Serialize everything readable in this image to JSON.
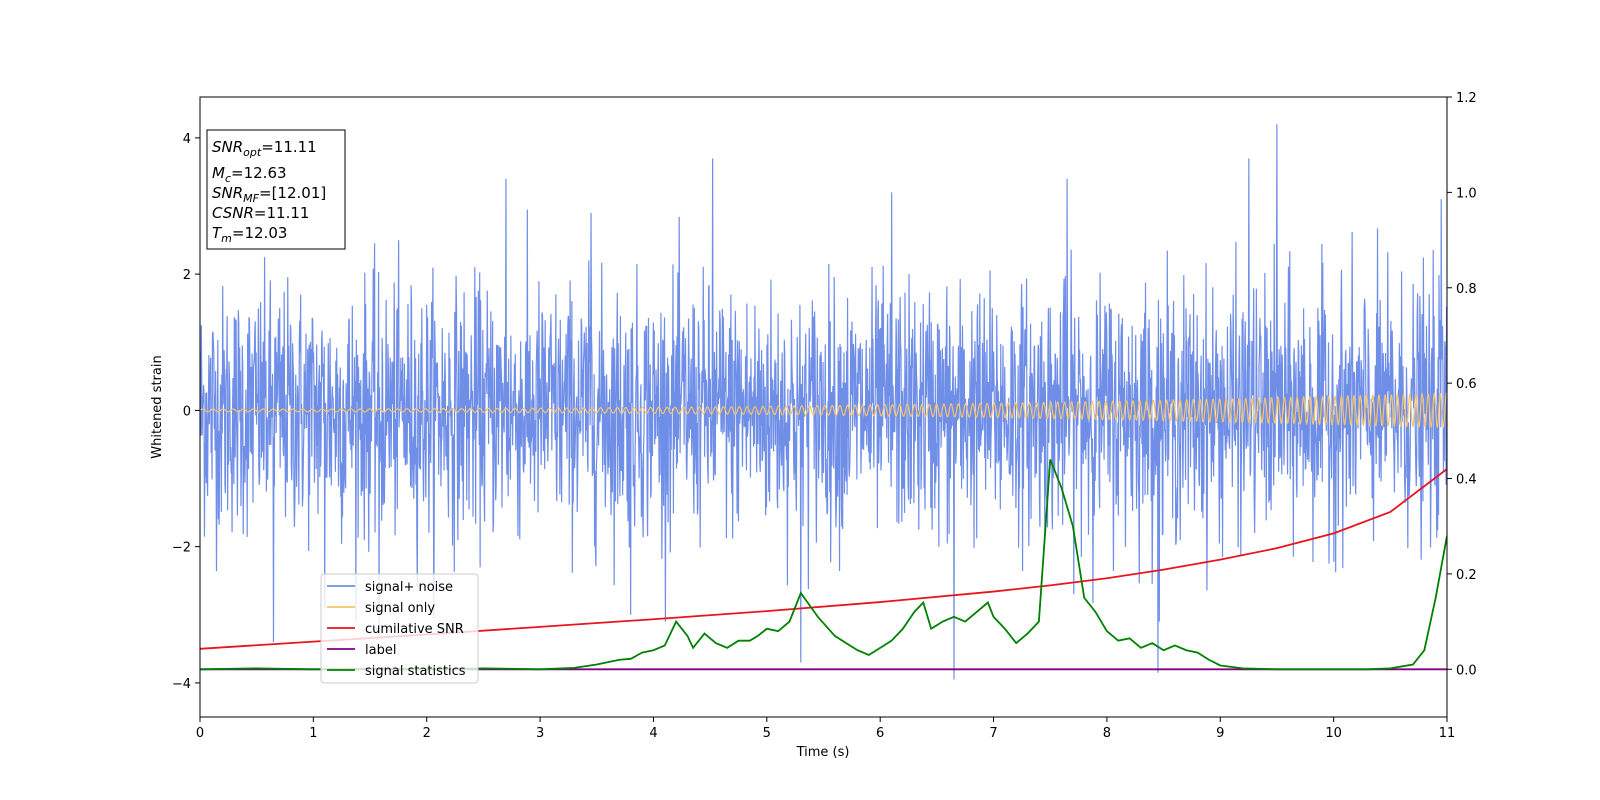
{
  "chart_data": {
    "type": "line",
    "xlabel": "Time (s)",
    "ylabel": "Whitened strain",
    "xlim": [
      0,
      11
    ],
    "ylim": [
      -4.5,
      4.6
    ],
    "y2lim": [
      -0.1,
      1.2
    ],
    "x_ticks": [
      "0",
      "1",
      "2",
      "3",
      "4",
      "5",
      "6",
      "7",
      "8",
      "9",
      "10",
      "11"
    ],
    "y_ticks": [
      "−4",
      "−2",
      "0",
      "2",
      "4"
    ],
    "y2_ticks": [
      "0.0",
      "0.2",
      "0.4",
      "0.6",
      "0.8",
      "1.0",
      "1.2"
    ],
    "grid": false,
    "legend_position": "lower-left",
    "info_box": [
      {
        "main": "SNR",
        "sub": "opt",
        "rest": "=11.11"
      },
      {
        "main": "M",
        "sub": "c",
        "rest": "=12.63"
      },
      {
        "main": "SNR",
        "sub": "MF",
        "rest": "=[12.01]"
      },
      {
        "main": "CSNR",
        "sub": "",
        "rest": "=11.11"
      },
      {
        "main": "T",
        "sub": "m",
        "rest": "=12.03"
      }
    ],
    "series": [
      {
        "name": "signal+ noise",
        "color": "#6f8ee8",
        "axis": "left",
        "style": "noise",
        "sigma": 0.9,
        "spikes": [
          {
            "x": 0.65,
            "y": -3.4
          },
          {
            "x": 1.58,
            "y": -3.3
          },
          {
            "x": 2.7,
            "y": 3.4
          },
          {
            "x": 3.8,
            "y": -3.0
          },
          {
            "x": 4.52,
            "y": 3.7
          },
          {
            "x": 5.3,
            "y": -3.7
          },
          {
            "x": 6.1,
            "y": 3.2
          },
          {
            "x": 6.65,
            "y": -3.95
          },
          {
            "x": 7.65,
            "y": 3.4
          },
          {
            "x": 8.45,
            "y": -3.85
          },
          {
            "x": 9.5,
            "y": 4.2
          },
          {
            "x": 9.25,
            "y": 3.7
          },
          {
            "x": 10.95,
            "y": 3.1
          },
          {
            "x": 3.45,
            "y": 2.9
          },
          {
            "x": 1.1,
            "y": -2.9
          }
        ]
      },
      {
        "name": "signal only",
        "color": "#f5c36e",
        "axis": "left",
        "style": "chirp",
        "amplitude_start": 0.02,
        "amplitude_end": 0.25
      },
      {
        "name": "cumilative SNR",
        "color": "#e8141e",
        "axis": "right",
        "style": "line",
        "x": [
          0,
          1,
          2,
          3,
          4,
          5,
          6,
          7,
          7.5,
          8,
          8.5,
          9,
          9.5,
          10,
          10.5,
          11
        ],
        "y": [
          0.043,
          0.058,
          0.073,
          0.089,
          0.105,
          0.122,
          0.141,
          0.163,
          0.176,
          0.191,
          0.209,
          0.23,
          0.254,
          0.285,
          0.33,
          0.42
        ]
      },
      {
        "name": "label",
        "color": "#800080",
        "axis": "right",
        "style": "line",
        "x": [
          0,
          11
        ],
        "y": [
          0.0,
          0.0
        ]
      },
      {
        "name": "signal statistics",
        "color": "#008000",
        "axis": "right",
        "style": "line",
        "x": [
          0,
          0.5,
          1,
          1.5,
          2,
          2.5,
          3,
          3.3,
          3.5,
          3.7,
          3.8,
          3.9,
          4.0,
          4.1,
          4.2,
          4.3,
          4.35,
          4.45,
          4.55,
          4.65,
          4.75,
          4.85,
          4.92,
          5.0,
          5.1,
          5.2,
          5.3,
          5.45,
          5.6,
          5.7,
          5.8,
          5.9,
          6.0,
          6.1,
          6.2,
          6.3,
          6.38,
          6.45,
          6.55,
          6.65,
          6.75,
          6.85,
          6.95,
          7.0,
          7.1,
          7.2,
          7.3,
          7.4,
          7.5,
          7.6,
          7.7,
          7.8,
          7.9,
          8.0,
          8.1,
          8.2,
          8.3,
          8.4,
          8.5,
          8.6,
          8.7,
          8.8,
          8.9,
          9.0,
          9.2,
          9.5,
          9.8,
          10.0,
          10.3,
          10.5,
          10.6,
          10.7,
          10.8,
          10.9,
          11.0
        ],
        "y": [
          0.0,
          0.002,
          0.0,
          0.001,
          0.0,
          0.002,
          0.0,
          0.003,
          0.01,
          0.02,
          0.022,
          0.035,
          0.04,
          0.05,
          0.1,
          0.07,
          0.045,
          0.075,
          0.055,
          0.045,
          0.06,
          0.06,
          0.07,
          0.085,
          0.08,
          0.1,
          0.16,
          0.11,
          0.07,
          0.055,
          0.04,
          0.03,
          0.045,
          0.06,
          0.085,
          0.12,
          0.14,
          0.085,
          0.1,
          0.11,
          0.1,
          0.12,
          0.14,
          0.11,
          0.085,
          0.055,
          0.075,
          0.1,
          0.44,
          0.38,
          0.3,
          0.15,
          0.12,
          0.08,
          0.06,
          0.065,
          0.045,
          0.055,
          0.04,
          0.05,
          0.04,
          0.035,
          0.02,
          0.008,
          0.002,
          0.0,
          0.0,
          0.0,
          0.0,
          0.002,
          0.006,
          0.01,
          0.04,
          0.15,
          0.28
        ]
      }
    ]
  }
}
